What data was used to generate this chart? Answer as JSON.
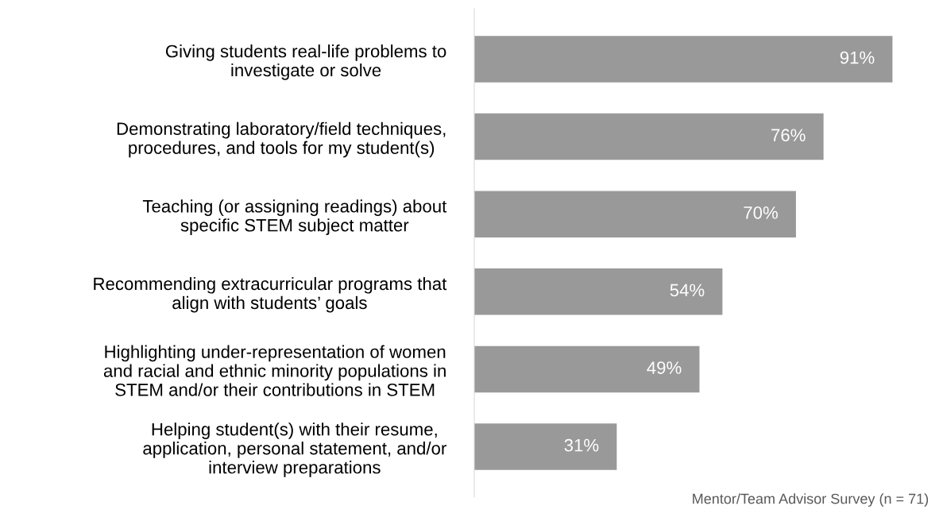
{
  "chart_data": {
    "type": "bar",
    "orientation": "horizontal",
    "categories": [
      "Giving students real-life problems to\ninvestigate or solve",
      "Demonstrating laboratory/field techniques,\nprocedures, and tools for my student(s)",
      "Teaching (or assigning readings) about\nspecific STEM subject matter",
      "Recommending extracurricular programs that\nalign with students’ goals",
      "Highlighting under-representation of women\nand racial and ethnic minority populations in\nSTEM and/or their contributions in STEM",
      "Helping student(s) with their resume,\napplication, personal statement, and/or\ninterview preparations"
    ],
    "values": [
      91,
      76,
      70,
      54,
      49,
      31
    ],
    "value_labels": [
      "91%",
      "76%",
      "70%",
      "54%",
      "49%",
      "31%"
    ],
    "color": "#999999",
    "tick_labels": "y",
    "grid": false,
    "legend": false,
    "annotations": [
      "Mentor/Team Advisor Survey (n = 71)"
    ]
  }
}
